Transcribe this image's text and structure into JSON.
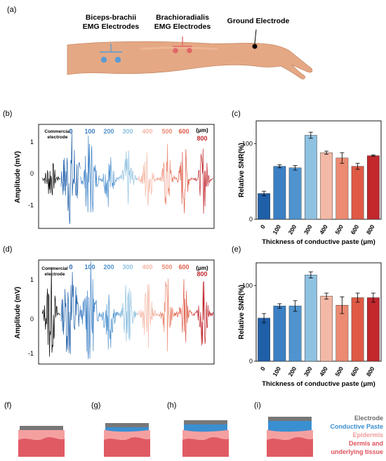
{
  "panels": {
    "a": "(a)",
    "b": "(b)",
    "c": "(c)",
    "d": "(d)",
    "e": "(e)",
    "f": "(f)",
    "g": "(g)",
    "h": "(h)",
    "i": "(i)"
  },
  "arm": {
    "biceps_label_1": "Biceps-brachii",
    "biceps_label_2": "EMG Electrodes",
    "brachio_label_1": "Brachioradialis",
    "brachio_label_2": "EMG Electrodes",
    "ground_label": "Ground Electrode",
    "colors": {
      "biceps": "#5b9bd5",
      "brachio": "#e06666",
      "ground": "#000000"
    }
  },
  "signals": {
    "ylabel": "Amplitude (mV)",
    "yticks": [
      "1",
      "0",
      "-1"
    ],
    "commercial_1": "Commercial",
    "commercial_2": "electrode",
    "unit": "(μm)",
    "labels": [
      "0",
      "100",
      "200",
      "300",
      "400",
      "500",
      "600",
      "800"
    ]
  },
  "colors": {
    "commercial": "#000000",
    "thickness": [
      "#1f5fa8",
      "#3b7fc4",
      "#4f93cf",
      "#8fc1e0",
      "#f4b8a6",
      "#ec8a72",
      "#de5a45",
      "#c1272d"
    ]
  },
  "chart_data": [
    {
      "type": "bar",
      "panel": "c",
      "categories": [
        "0",
        "100",
        "200",
        "300",
        "400",
        "500",
        "600",
        "800"
      ],
      "values": [
        34,
        70,
        68,
        111,
        88,
        81,
        70,
        84
      ],
      "errors": [
        3,
        2,
        3,
        4,
        2,
        7,
        4,
        1
      ],
      "xlabel": "Thickness of conductive paste (μm)",
      "ylabel": "Relative SNR(%)",
      "yticks": [
        "0",
        "100"
      ],
      "ylim": [
        0,
        130
      ]
    },
    {
      "type": "bar",
      "panel": "e",
      "categories": [
        "0",
        "100",
        "200",
        "300",
        "400",
        "500",
        "600",
        "800"
      ],
      "values": [
        57,
        73,
        73,
        114,
        86,
        74,
        84,
        84
      ],
      "errors": [
        6,
        3,
        7,
        4,
        4,
        11,
        6,
        6
      ],
      "xlabel": "Thickness of conductive paste (μm)",
      "ylabel": "Relative SNR(%)",
      "yticks": [
        "0",
        "100"
      ],
      "ylim": [
        0,
        130
      ]
    }
  ],
  "layers": {
    "legend": [
      "Electrode",
      "Conductive Paste",
      "Epidermis",
      "Dermis and",
      "underlying tissue"
    ],
    "colors": {
      "electrode": "#777777",
      "paste": "#3a8fd1",
      "epidermis": "#f4a0a0",
      "dermis": "#e05a64"
    }
  }
}
